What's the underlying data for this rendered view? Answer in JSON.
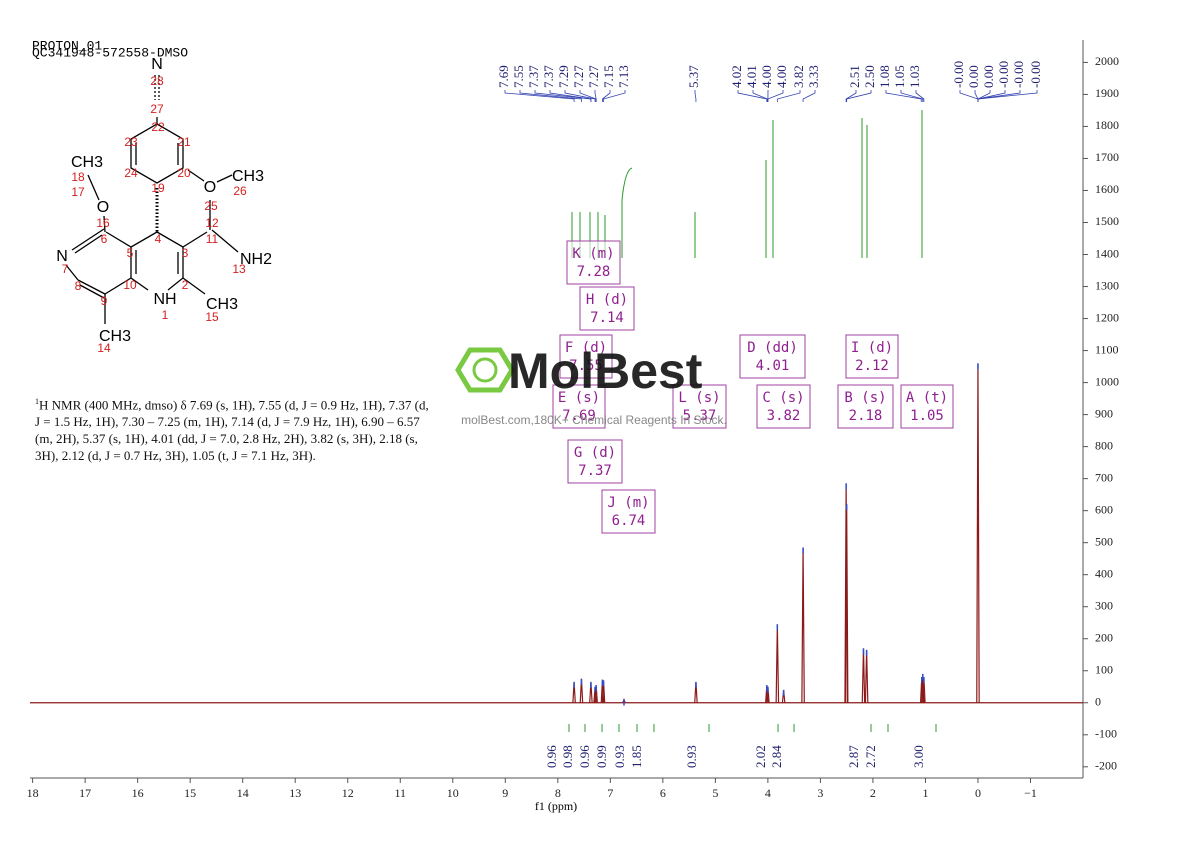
{
  "header": {
    "title": "PROTON_01",
    "sample": "QC341948-572558-DMSO"
  },
  "structure": {
    "atoms": [
      "N",
      "CH3",
      "O",
      "N",
      "NH",
      "CH3",
      "O",
      "CH3",
      "NH2",
      "CH3"
    ],
    "numbers": [
      "28",
      "27",
      "22",
      "23",
      "21",
      "24",
      "20",
      "19",
      "26",
      "25",
      "18",
      "17",
      "16",
      "12",
      "4",
      "3",
      "11",
      "13",
      "6",
      "5",
      "7",
      "8",
      "10",
      "2",
      "9",
      "1",
      "15",
      "14"
    ]
  },
  "nmr_text": {
    "sup": "1",
    "body": "H NMR (400 MHz, dmso) δ 7.69 (s, 1H), 7.55 (d, J = 0.9 Hz, 1H), 7.37 (d, J = 1.5 Hz, 1H), 7.30 – 7.25 (m, 1H), 7.14 (d, J = 7.9 Hz, 1H), 6.90 – 6.57 (m, 2H), 5.37 (s, 1H), 4.01 (dd, J = 7.0, 2.8 Hz, 2H), 3.82 (s, 3H), 2.18 (s, 3H), 2.12 (d, J = 0.7 Hz, 3H), 1.05 (t, J = 7.1 Hz, 3H)."
  },
  "watermark": {
    "logo": "MolBest",
    "tagline": "molBest.com,180K+ Chemical Reagents In Stock."
  },
  "chart_data": {
    "type": "spectrum",
    "x_label": "f1 (ppm)",
    "xlim": [
      18.05,
      -2
    ],
    "xticks": [
      18,
      17,
      16,
      15,
      14,
      13,
      12,
      11,
      10,
      9,
      8,
      7,
      6,
      5,
      4,
      3,
      2,
      1,
      0,
      {
        "value": -1,
        "label": "−1"
      }
    ],
    "ylim": [
      -235,
      2070
    ],
    "yticks": [
      -200,
      -100,
      0,
      100,
      200,
      300,
      400,
      500,
      600,
      700,
      800,
      900,
      1000,
      1100,
      1200,
      1300,
      1400,
      1500,
      1600,
      1700,
      1800,
      1900,
      2000
    ],
    "color": "#8b1a1a",
    "peaks": {
      "x": [
        7.69,
        7.55,
        7.37,
        7.29,
        7.27,
        7.15,
        7.13,
        6.74,
        5.37,
        4.02,
        4.0,
        3.82,
        3.7,
        3.33,
        2.51,
        2.5,
        2.18,
        2.12,
        1.07,
        1.05,
        1.03,
        0.0
      ],
      "values": [
        65,
        75,
        65,
        50,
        55,
        72,
        70,
        10,
        65,
        55,
        50,
        245,
        40,
        485,
        685,
        620,
        170,
        165,
        80,
        90,
        80,
        1060
      ]
    },
    "peak_labels": [
      "7.69",
      "7.55",
      "7.37",
      "7.37",
      "7.29",
      "7.27",
      "7.27",
      "7.15",
      "7.13",
      "5.37",
      "4.02",
      "4.01",
      "4.00",
      "4.00",
      "3.82",
      "3.33",
      "2.51",
      "2.50",
      "1.08",
      "1.05",
      "1.03",
      "-0.00",
      "0.00",
      "0.00",
      "-0.00",
      "-0.00",
      "-0.00"
    ],
    "multiplets": [
      {
        "name": "K (m)",
        "shift": "7.28"
      },
      {
        "name": "H (d)",
        "shift": "7.14"
      },
      {
        "name": "F (d)",
        "shift": "7.55"
      },
      {
        "name": "E (s)",
        "shift": "7.69"
      },
      {
        "name": "G (d)",
        "shift": "7.37"
      },
      {
        "name": "J (m)",
        "shift": "6.74"
      },
      {
        "name": "L (s)",
        "shift": "5.37"
      },
      {
        "name": "D (dd)",
        "shift": "4.01"
      },
      {
        "name": "C (s)",
        "shift": "3.82"
      },
      {
        "name": "I (d)",
        "shift": "2.12"
      },
      {
        "name": "B (s)",
        "shift": "2.18"
      },
      {
        "name": "A (t)",
        "shift": "1.05"
      }
    ],
    "integrals": [
      "0.96",
      "0.98",
      "0.96",
      "0.99",
      "0.93",
      "1.85",
      "0.93",
      "2.02",
      "2.84",
      "2.87",
      "2.72",
      "3.00"
    ]
  }
}
